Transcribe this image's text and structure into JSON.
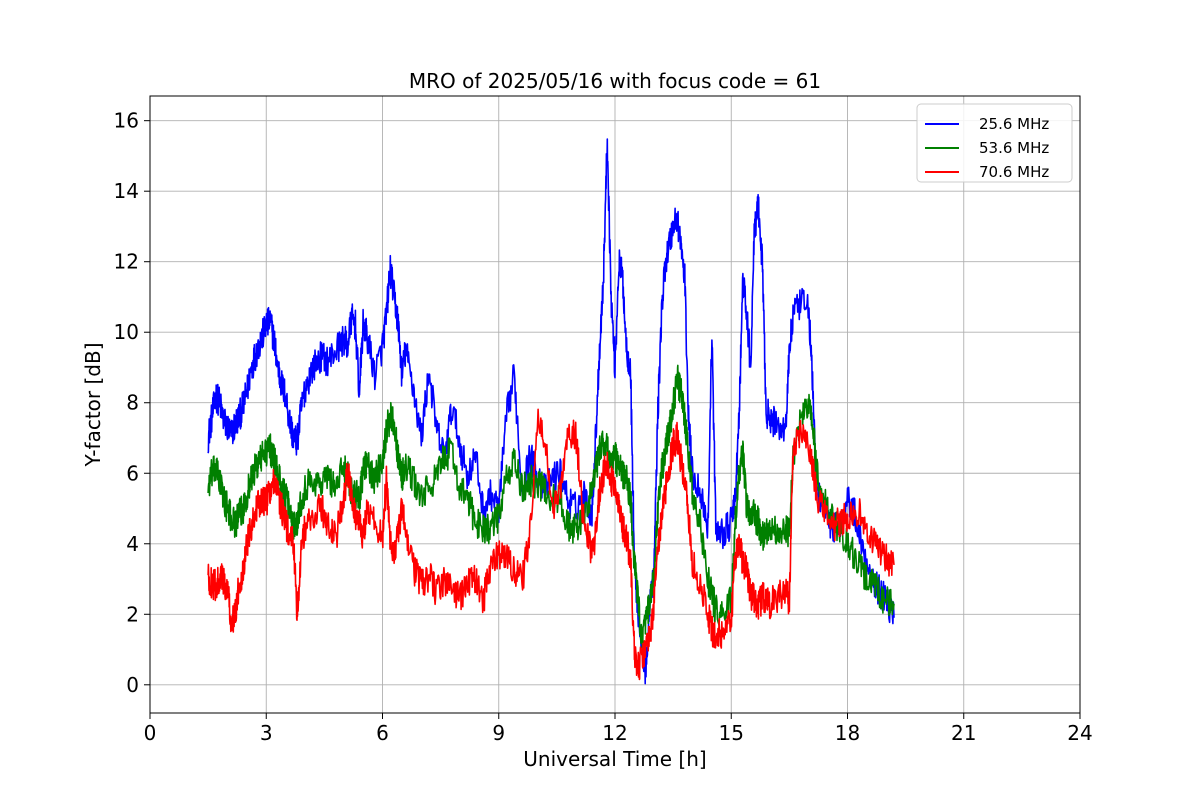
{
  "chart_data": {
    "type": "line",
    "title": "MRO of 2025/05/16 with focus code = 61",
    "xlabel": "Universal Time [h]",
    "ylabel": "Y-factor [dB]",
    "xlim": [
      0,
      24
    ],
    "ylim": [
      -0.8,
      16.7
    ],
    "xticks": [
      0,
      3,
      6,
      9,
      12,
      15,
      18,
      21,
      24
    ],
    "yticks": [
      0,
      2,
      4,
      6,
      8,
      10,
      12,
      14,
      16
    ],
    "grid": true,
    "legend_position": "top-right",
    "series": [
      {
        "name": "25.6 MHz",
        "color": "#0000ff",
        "x": [
          1.5,
          1.6,
          1.7,
          1.8,
          1.9,
          2.0,
          2.1,
          2.2,
          2.3,
          2.4,
          2.5,
          2.6,
          2.7,
          2.8,
          2.9,
          3.0,
          3.1,
          3.2,
          3.3,
          3.4,
          3.5,
          3.6,
          3.7,
          3.8,
          3.9,
          4.0,
          4.2,
          4.4,
          4.6,
          4.8,
          5.0,
          5.1,
          5.2,
          5.3,
          5.4,
          5.5,
          5.6,
          5.8,
          6.0,
          6.1,
          6.2,
          6.3,
          6.4,
          6.5,
          6.6,
          6.8,
          7.0,
          7.2,
          7.4,
          7.6,
          7.8,
          8.0,
          8.2,
          8.4,
          8.6,
          8.8,
          9.0,
          9.2,
          9.4,
          9.6,
          9.8,
          10.0,
          10.2,
          10.4,
          10.6,
          10.8,
          11.0,
          11.2,
          11.4,
          11.5,
          11.6,
          11.7,
          11.8,
          11.9,
          12.0,
          12.1,
          12.2,
          12.3,
          12.4,
          12.5,
          12.6,
          12.7,
          12.8,
          12.9,
          13.0,
          13.1,
          13.2,
          13.3,
          13.4,
          13.5,
          13.6,
          13.7,
          13.8,
          13.9,
          14.0,
          14.2,
          14.4,
          14.5,
          14.6,
          14.8,
          15.0,
          15.1,
          15.2,
          15.3,
          15.4,
          15.5,
          15.6,
          15.7,
          15.8,
          15.9,
          16.0,
          16.2,
          16.4,
          16.5,
          16.6,
          16.8,
          17.0,
          17.1,
          17.2,
          17.4,
          17.6,
          17.8,
          18.0,
          18.2,
          18.4,
          18.6,
          18.8,
          19.0,
          19.2
        ],
        "y": [
          7.0,
          7.6,
          8.2,
          8.0,
          7.5,
          7.3,
          7.1,
          7.4,
          7.6,
          7.9,
          8.3,
          8.9,
          9.3,
          9.6,
          9.9,
          10.2,
          10.3,
          9.8,
          9.0,
          8.5,
          8.2,
          7.5,
          7.0,
          6.9,
          7.8,
          8.4,
          9.0,
          9.3,
          9.2,
          9.5,
          9.8,
          9.6,
          10.4,
          10.2,
          8.3,
          10.2,
          9.9,
          8.8,
          9.6,
          10.5,
          11.8,
          11.0,
          10.3,
          8.8,
          9.5,
          8.4,
          7.0,
          8.9,
          7.2,
          6.5,
          7.9,
          6.8,
          5.9,
          6.5,
          4.9,
          5.4,
          5.0,
          7.6,
          8.8,
          5.5,
          6.5,
          6.0,
          5.5,
          5.9,
          6.0,
          5.2,
          5.0,
          5.4,
          4.8,
          7.0,
          9.5,
          11.5,
          15.5,
          11.0,
          9.0,
          12.0,
          11.5,
          9.5,
          9.0,
          3.5,
          2.0,
          1.0,
          0.3,
          2.5,
          3.0,
          7.5,
          10.5,
          12.0,
          12.5,
          13.0,
          13.3,
          12.5,
          11.5,
          7.5,
          6.0,
          5.5,
          4.5,
          10.0,
          4.5,
          4.3,
          4.6,
          5.2,
          7.5,
          11.5,
          10.5,
          9.0,
          13.0,
          13.5,
          12.0,
          7.8,
          7.5,
          7.4,
          7.2,
          9.5,
          10.5,
          10.8,
          10.7,
          8.5,
          5.5,
          5.0,
          4.5,
          4.5,
          5.3,
          4.8,
          3.8,
          3.2,
          2.7,
          2.4,
          1.9
        ]
      },
      {
        "name": "53.6 MHz",
        "color": "#008000",
        "x": [
          1.5,
          1.6,
          1.7,
          1.8,
          1.9,
          2.0,
          2.1,
          2.2,
          2.3,
          2.4,
          2.5,
          2.6,
          2.7,
          2.8,
          2.9,
          3.0,
          3.1,
          3.2,
          3.3,
          3.4,
          3.5,
          3.6,
          3.7,
          3.8,
          3.9,
          4.0,
          4.2,
          4.4,
          4.6,
          4.8,
          5.0,
          5.1,
          5.2,
          5.3,
          5.4,
          5.5,
          5.6,
          5.8,
          6.0,
          6.1,
          6.2,
          6.3,
          6.4,
          6.5,
          6.6,
          6.8,
          7.0,
          7.2,
          7.4,
          7.6,
          7.8,
          8.0,
          8.2,
          8.4,
          8.6,
          8.8,
          9.0,
          9.2,
          9.4,
          9.6,
          9.8,
          10.0,
          10.2,
          10.4,
          10.6,
          10.8,
          11.0,
          11.2,
          11.4,
          11.5,
          11.6,
          11.7,
          11.8,
          11.9,
          12.0,
          12.1,
          12.2,
          12.3,
          12.4,
          12.5,
          12.6,
          12.7,
          12.8,
          12.9,
          13.0,
          13.1,
          13.2,
          13.3,
          13.4,
          13.5,
          13.6,
          13.7,
          13.8,
          13.9,
          14.0,
          14.2,
          14.4,
          14.5,
          14.6,
          14.8,
          15.0,
          15.1,
          15.2,
          15.3,
          15.4,
          15.5,
          15.6,
          15.7,
          15.8,
          15.9,
          16.0,
          16.2,
          16.4,
          16.5,
          16.6,
          16.8,
          17.0,
          17.1,
          17.2,
          17.4,
          17.6,
          17.8,
          18.0,
          18.2,
          18.4,
          18.6,
          18.8,
          19.0,
          19.2
        ],
        "y": [
          5.6,
          6.0,
          6.1,
          5.8,
          5.3,
          5.0,
          4.7,
          4.6,
          4.8,
          5.0,
          5.4,
          5.8,
          6.1,
          6.3,
          6.5,
          6.6,
          6.7,
          6.4,
          6.0,
          5.6,
          5.3,
          5.0,
          4.5,
          4.7,
          5.2,
          5.6,
          5.8,
          5.7,
          5.9,
          5.6,
          6.2,
          6.0,
          5.5,
          5.4,
          5.3,
          6.0,
          6.3,
          5.8,
          6.4,
          7.2,
          7.6,
          7.5,
          6.5,
          5.9,
          6.2,
          5.8,
          5.3,
          5.6,
          5.9,
          6.5,
          6.6,
          5.5,
          5.3,
          4.6,
          4.5,
          4.4,
          4.8,
          5.8,
          6.4,
          5.5,
          5.8,
          5.7,
          5.5,
          5.3,
          5.2,
          4.5,
          4.4,
          4.8,
          5.5,
          6.1,
          6.6,
          6.9,
          6.8,
          6.2,
          6.5,
          6.2,
          6.0,
          5.8,
          5.3,
          3.5,
          2.3,
          1.3,
          1.8,
          2.3,
          2.9,
          4.8,
          6.0,
          6.7,
          7.2,
          7.9,
          8.7,
          8.3,
          7.5,
          6.5,
          5.5,
          4.5,
          3.0,
          2.6,
          2.1,
          2.0,
          2.4,
          4.5,
          6.0,
          6.5,
          5.0,
          4.9,
          4.8,
          4.6,
          4.2,
          4.4,
          4.5,
          4.3,
          4.4,
          4.3,
          6.5,
          7.6,
          7.9,
          7.5,
          6.0,
          5.2,
          4.7,
          4.3,
          4.1,
          3.6,
          3.2,
          2.9,
          2.6,
          2.4,
          2.3
        ]
      },
      {
        "name": "70.6 MHz",
        "color": "#ff0000",
        "x": [
          1.5,
          1.6,
          1.7,
          1.8,
          1.9,
          2.0,
          2.1,
          2.2,
          2.3,
          2.4,
          2.5,
          2.6,
          2.7,
          2.8,
          2.9,
          3.0,
          3.1,
          3.2,
          3.3,
          3.4,
          3.5,
          3.6,
          3.7,
          3.8,
          3.9,
          4.0,
          4.2,
          4.4,
          4.6,
          4.8,
          5.0,
          5.1,
          5.2,
          5.3,
          5.4,
          5.5,
          5.6,
          5.8,
          6.0,
          6.1,
          6.2,
          6.3,
          6.4,
          6.5,
          6.6,
          6.8,
          7.0,
          7.2,
          7.4,
          7.6,
          7.8,
          8.0,
          8.2,
          8.4,
          8.6,
          8.8,
          9.0,
          9.2,
          9.4,
          9.6,
          9.8,
          10.0,
          10.2,
          10.4,
          10.6,
          10.8,
          11.0,
          11.2,
          11.4,
          11.5,
          11.6,
          11.7,
          11.8,
          11.9,
          12.0,
          12.1,
          12.2,
          12.3,
          12.4,
          12.5,
          12.6,
          12.7,
          12.8,
          12.9,
          13.0,
          13.1,
          13.2,
          13.3,
          13.4,
          13.5,
          13.6,
          13.7,
          13.8,
          13.9,
          14.0,
          14.2,
          14.4,
          14.5,
          14.6,
          14.8,
          15.0,
          15.1,
          15.2,
          15.3,
          15.4,
          15.5,
          15.6,
          15.7,
          15.8,
          15.9,
          16.0,
          16.2,
          16.4,
          16.5,
          16.6,
          16.8,
          17.0,
          17.1,
          17.2,
          17.4,
          17.6,
          17.8,
          18.0,
          18.2,
          18.4,
          18.6,
          18.8,
          19.0,
          19.2
        ],
        "y": [
          3.0,
          2.9,
          2.8,
          3.1,
          2.9,
          2.7,
          1.8,
          2.0,
          2.8,
          3.3,
          4.0,
          4.5,
          4.8,
          5.1,
          5.3,
          5.2,
          5.5,
          5.7,
          5.4,
          5.0,
          4.6,
          4.2,
          4.0,
          2.0,
          3.9,
          4.4,
          4.8,
          5.1,
          4.5,
          4.2,
          5.2,
          6.0,
          5.5,
          4.8,
          4.6,
          4.2,
          5.0,
          4.6,
          4.2,
          5.8,
          4.0,
          3.8,
          4.2,
          5.0,
          4.5,
          3.3,
          2.9,
          3.1,
          2.6,
          3.0,
          2.7,
          2.5,
          2.9,
          3.0,
          2.4,
          3.4,
          3.7,
          3.6,
          3.3,
          2.9,
          4.2,
          7.5,
          6.8,
          5.0,
          5.5,
          7.2,
          7.0,
          4.5,
          3.8,
          4.2,
          5.5,
          6.0,
          6.2,
          5.8,
          5.5,
          5.3,
          4.5,
          4.2,
          3.5,
          1.0,
          0.5,
          0.8,
          1.0,
          1.4,
          2.2,
          3.8,
          4.8,
          5.5,
          6.2,
          6.8,
          7.0,
          6.4,
          5.8,
          4.8,
          3.5,
          2.8,
          2.0,
          1.5,
          1.4,
          1.5,
          1.8,
          3.6,
          4.0,
          3.5,
          3.2,
          2.6,
          2.4,
          2.2,
          2.5,
          2.4,
          2.3,
          2.5,
          2.6,
          2.4,
          6.8,
          7.2,
          6.8,
          6.2,
          5.4,
          4.8,
          4.5,
          4.6,
          4.8,
          5.0,
          4.7,
          4.2,
          3.8,
          3.6,
          3.4
        ]
      }
    ]
  }
}
